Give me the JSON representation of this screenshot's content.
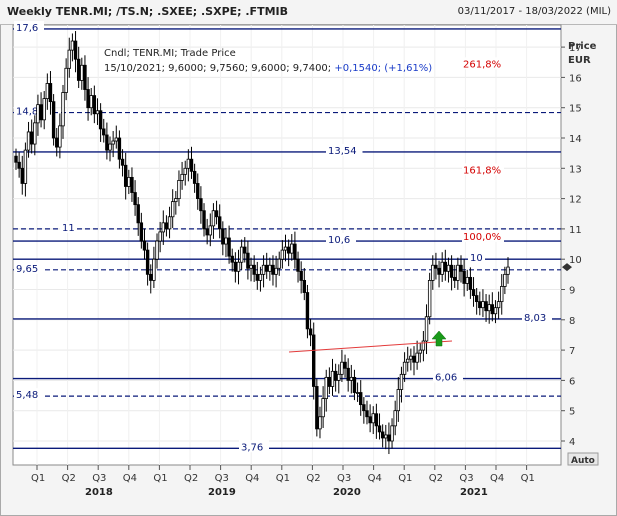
{
  "header": {
    "title": "Weekly TENR.MI; /TS.N; .SXEE; .SXPE; .FTMIB",
    "date_range": "03/11/2017 - 18/03/2022 (MIL)"
  },
  "info_box": {
    "line1": "Cndl; TENR.MI; Trade Price",
    "line2_prefix": "15/10/2021; 9,6000; 9,7560; 9,6000; 9,7400; ",
    "line2_change": "+0,1540; (+1,61%)"
  },
  "axis": {
    "price_label": "Price",
    "currency_label": "EUR",
    "auto_button": "Auto",
    "y_ticks": [
      "17",
      "16",
      "15",
      "14",
      "13",
      "12",
      "11",
      "10",
      "9",
      "8",
      "7",
      "6",
      "5",
      "4"
    ],
    "quarters": [
      "Q1",
      "Q2",
      "Q3",
      "Q4",
      "Q1",
      "Q2",
      "Q3",
      "Q4",
      "Q1",
      "Q2",
      "Q3",
      "Q4",
      "Q1",
      "Q2",
      "Q3",
      "Q4",
      "Q1"
    ],
    "years": [
      "2018",
      "2019",
      "2020",
      "2021"
    ]
  },
  "levels": [
    {
      "label": "17,6",
      "value": 17.6,
      "style": "solid",
      "label_pos": "left"
    },
    {
      "label": "14,84",
      "value": 14.84,
      "style": "dashed",
      "label_pos": "left"
    },
    {
      "label": "13,54",
      "value": 13.54,
      "style": "solid",
      "label_pos": "mid"
    },
    {
      "label": "11",
      "value": 11.0,
      "style": "dashed",
      "label_pos": "left2"
    },
    {
      "label": "10,6",
      "value": 10.6,
      "style": "solid",
      "label_pos": "mid"
    },
    {
      "label": "10",
      "value": 10.0,
      "style": "solid",
      "label_pos": "right"
    },
    {
      "label": "9,65",
      "value": 9.65,
      "style": "dashed",
      "label_pos": "left"
    },
    {
      "label": "8,03",
      "value": 8.03,
      "style": "solid",
      "label_pos": "farright"
    },
    {
      "label": "6,06",
      "value": 6.06,
      "style": "solid",
      "label_pos": "mid2"
    },
    {
      "label": "5,48",
      "value": 5.48,
      "style": "dashed",
      "label_pos": "left"
    },
    {
      "label": "3,76",
      "value": 3.76,
      "style": "solid",
      "label_pos": "leftmid"
    }
  ],
  "fib_labels": [
    {
      "label": "261,8%",
      "value": 16.4
    },
    {
      "label": "161,8%",
      "value": 12.9
    },
    {
      "label": "100,0%",
      "value": 10.7
    }
  ],
  "current_price_marker": 9.74,
  "colors": {
    "level_line": "#0a1a7a",
    "candles": "#000000",
    "fib_text": "#d40000",
    "trendline": "#e33a3a",
    "arrow": "#1a9a1a",
    "change_text": "#1a3cc8"
  },
  "chart_data": {
    "type": "candlestick",
    "x_unit": "weeks since 03/11/2017",
    "close": [
      13.2,
      13.0,
      12.5,
      13.6,
      14.2,
      13.8,
      14.5,
      15.1,
      14.6,
      15.3,
      15.8,
      15.2,
      14.0,
      13.7,
      14.4,
      15.5,
      16.3,
      16.9,
      17.2,
      16.6,
      15.9,
      16.4,
      15.6,
      15.0,
      15.4,
      14.8,
      14.9,
      14.3,
      14.1,
      13.6,
      13.8,
      13.9,
      14.0,
      13.3,
      13.1,
      12.4,
      12.7,
      12.2,
      11.8,
      11.2,
      10.6,
      10.3,
      9.5,
      9.3,
      10.0,
      10.6,
      10.9,
      11.2,
      11.0,
      11.4,
      11.9,
      12.0,
      12.6,
      12.8,
      13.0,
      13.3,
      12.9,
      12.5,
      12.0,
      11.6,
      11.0,
      10.8,
      11.1,
      11.6,
      11.4,
      11.0,
      10.5,
      10.7,
      10.1,
      9.9,
      9.6,
      9.9,
      10.4,
      10.2,
      9.7,
      9.8,
      9.5,
      9.3,
      9.5,
      9.8,
      9.6,
      9.8,
      9.5,
      9.7,
      10.0,
      10.3,
      10.4,
      10.2,
      10.5,
      10.0,
      9.6,
      9.3,
      8.9,
      7.7,
      7.5,
      5.8,
      4.4,
      4.8,
      5.4,
      6.1,
      5.8,
      6.3,
      6.0,
      6.2,
      6.6,
      6.4,
      6.0,
      6.1,
      5.6,
      5.6,
      5.2,
      5.0,
      4.8,
      4.6,
      4.9,
      4.5,
      4.3,
      4.1,
      4.2,
      4.0,
      4.5,
      5.0,
      5.7,
      6.2,
      6.6,
      6.7,
      6.8,
      6.6,
      6.9,
      7.0,
      7.3,
      8.1,
      9.3,
      9.8,
      9.7,
      9.5,
      9.9,
      9.6,
      9.8,
      9.4,
      9.3,
      9.8,
      9.6,
      9.2,
      9.4,
      9.0,
      8.8,
      8.6,
      8.4,
      8.6,
      8.3,
      8.5,
      8.2,
      8.4,
      8.6,
      9.1,
      9.5,
      9.74
    ],
    "ylim": [
      3.5,
      17.8
    ],
    "xlabel_years": [
      "2018",
      "2019",
      "2020",
      "2021"
    ],
    "ylabel": "Price EUR"
  }
}
